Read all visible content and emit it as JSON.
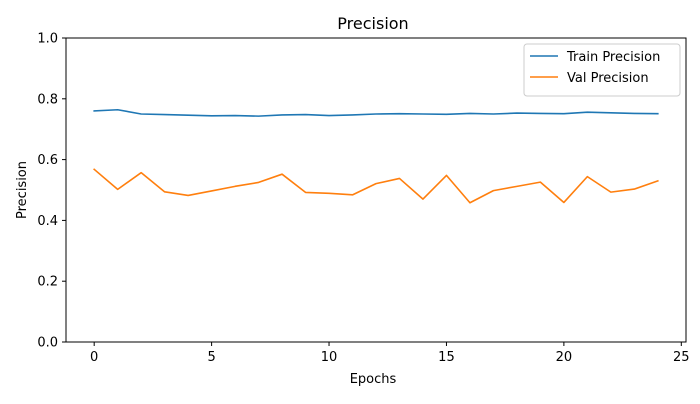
{
  "chart_data": {
    "type": "line",
    "title": "Precision",
    "xlabel": "Epochs",
    "ylabel": "Precision",
    "xlim": [
      -1.2,
      25.2
    ],
    "ylim": [
      0.0,
      1.0
    ],
    "xticks": [
      0,
      5,
      10,
      15,
      20,
      25
    ],
    "yticks": [
      0.0,
      0.2,
      0.4,
      0.6,
      0.8,
      1.0
    ],
    "xtick_labels": [
      "0",
      "5",
      "10",
      "15",
      "20",
      "25"
    ],
    "ytick_labels": [
      "0.0",
      "0.2",
      "0.4",
      "0.6",
      "0.8",
      "1.0"
    ],
    "grid": false,
    "legend_position": "top-right",
    "x": [
      0,
      1,
      2,
      3,
      4,
      5,
      6,
      7,
      8,
      9,
      10,
      11,
      12,
      13,
      14,
      15,
      16,
      17,
      18,
      19,
      20,
      21,
      22,
      23,
      24
    ],
    "series": [
      {
        "name": "Train Precision",
        "color": "#1f77b4",
        "values": [
          0.76,
          0.764,
          0.75,
          0.748,
          0.746,
          0.744,
          0.745,
          0.743,
          0.747,
          0.748,
          0.745,
          0.747,
          0.75,
          0.751,
          0.75,
          0.749,
          0.752,
          0.75,
          0.753,
          0.752,
          0.751,
          0.756,
          0.754,
          0.752,
          0.751
        ]
      },
      {
        "name": "Val Precision",
        "color": "#ff7f0e",
        "values": [
          0.568,
          0.502,
          0.557,
          0.494,
          0.482,
          0.497,
          0.512,
          0.525,
          0.552,
          0.492,
          0.489,
          0.484,
          0.521,
          0.538,
          0.47,
          0.548,
          0.458,
          0.498,
          0.512,
          0.526,
          0.459,
          0.544,
          0.493,
          0.503,
          0.53
        ]
      }
    ]
  }
}
